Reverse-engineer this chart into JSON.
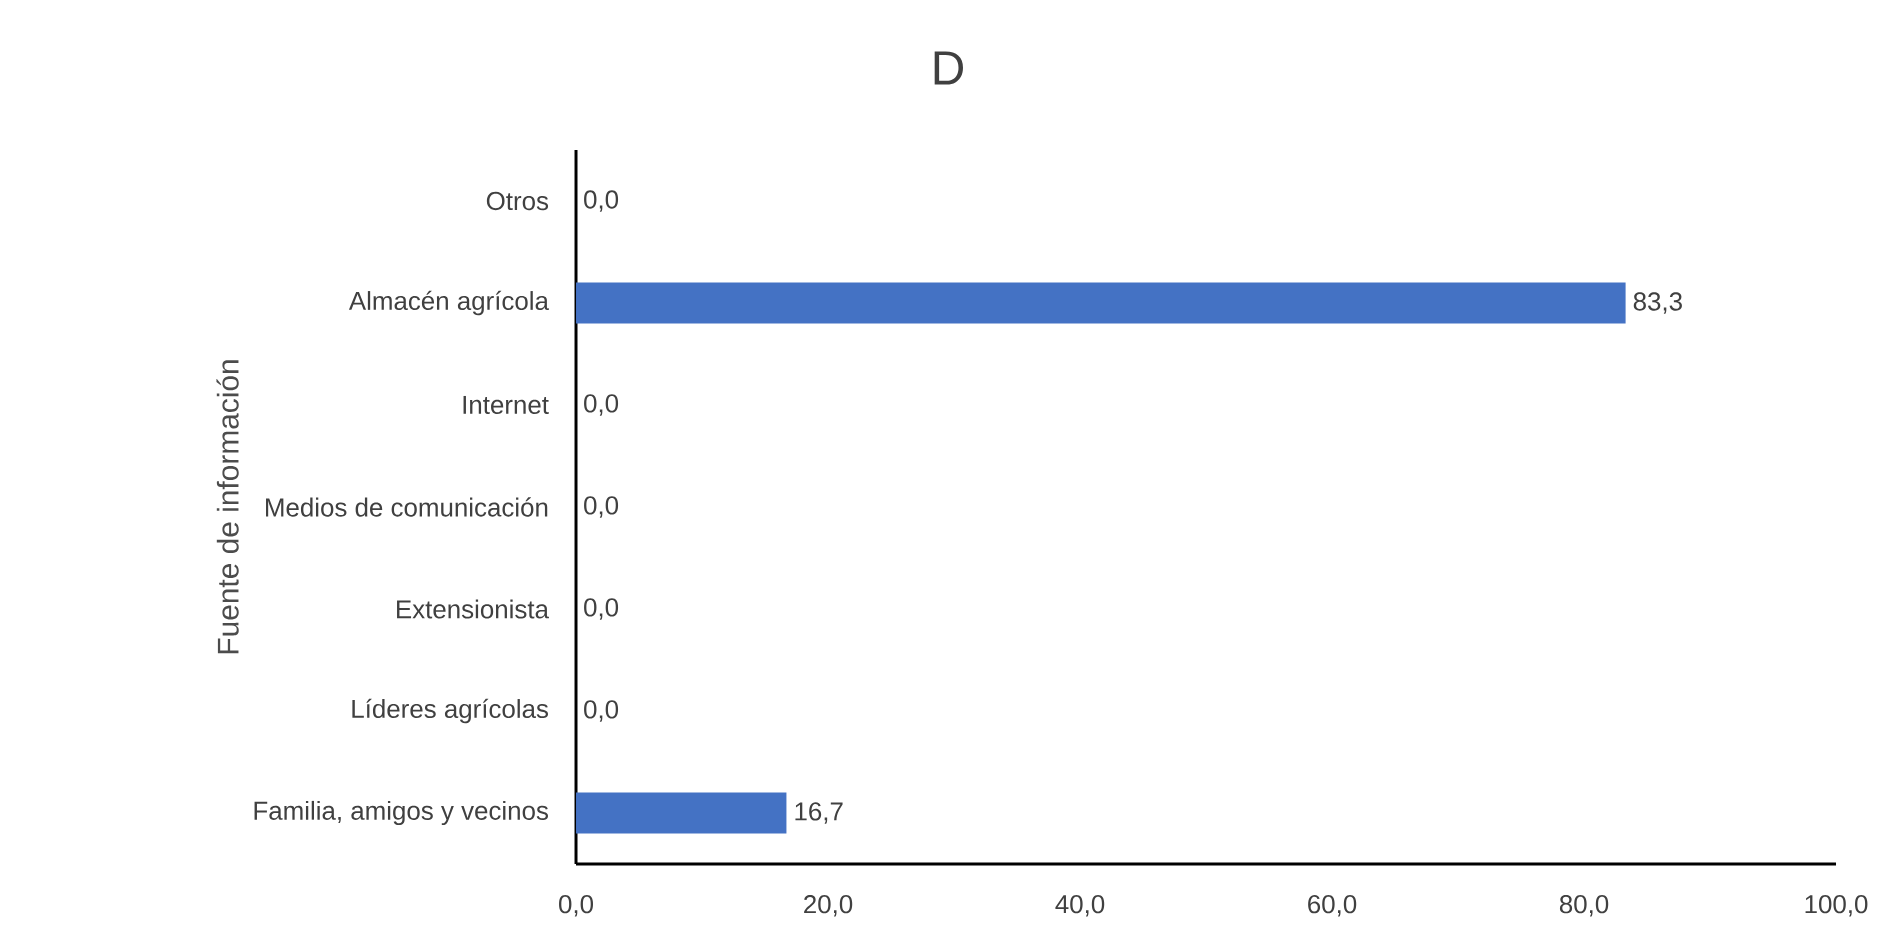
{
  "chart_data": {
    "type": "bar",
    "orientation": "horizontal",
    "title": "D",
    "ylabel": "Fuente de información",
    "categories": [
      "Otros",
      "Almacén agrícola",
      "Internet",
      "Medios de comunicación",
      "Extensionista",
      "Líderes agrícolas",
      "Familia, amigos y vecinos"
    ],
    "values": [
      0,
      83.3,
      0,
      0,
      0,
      0,
      16.7
    ],
    "value_labels": [
      "0,0",
      "83,3",
      "0,0",
      "0,0",
      "0,0",
      "0,0",
      "16,7"
    ],
    "color": "#4472c4",
    "xlim": [
      0,
      100
    ],
    "xticks": [
      {
        "value": 0,
        "label": "0,0"
      },
      {
        "value": 20,
        "label": "20,0"
      },
      {
        "value": 40,
        "label": "40,0"
      },
      {
        "value": 60,
        "label": "60,0"
      },
      {
        "value": 80,
        "label": "80,0"
      },
      {
        "value": 100,
        "label": "100,0"
      }
    ]
  }
}
